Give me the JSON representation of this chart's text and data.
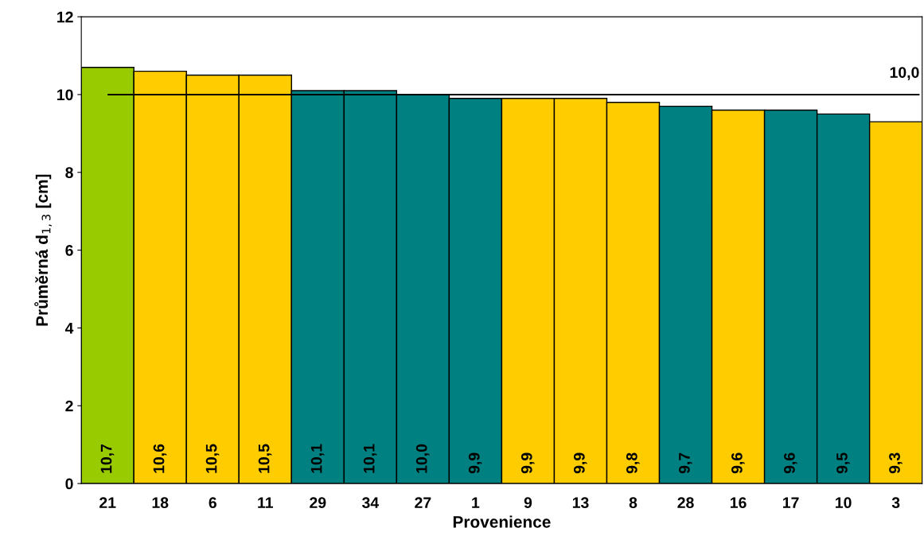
{
  "chart_data": {
    "type": "bar",
    "xlabel": "Provenience",
    "ylabel": "Průměrná d$_{1,3}$ [cm]",
    "categories": [
      "21",
      "18",
      "6",
      "11",
      "29",
      "34",
      "27",
      "1",
      "9",
      "13",
      "8",
      "28",
      "16",
      "17",
      "10",
      "3"
    ],
    "values": [
      10.7,
      10.6,
      10.5,
      10.5,
      10.1,
      10.1,
      10.0,
      9.9,
      9.9,
      9.9,
      9.8,
      9.7,
      9.6,
      9.6,
      9.5,
      9.3
    ],
    "value_labels": [
      "10,7",
      "10,6",
      "10,5",
      "10,5",
      "10,1",
      "10,1",
      "10,0",
      "9,9",
      "9,9",
      "9,9",
      "9,8",
      "9,7",
      "9,6",
      "9,6",
      "9,5",
      "9,3"
    ],
    "colors": [
      "#99cc00",
      "#ffcc00",
      "#ffcc00",
      "#ffcc00",
      "#008080",
      "#008080",
      "#008080",
      "#008080",
      "#ffcc00",
      "#ffcc00",
      "#ffcc00",
      "#008080",
      "#ffcc00",
      "#008080",
      "#008080",
      "#ffcc00"
    ],
    "ylim": [
      0,
      12
    ],
    "yticks": [
      0,
      2,
      4,
      6,
      8,
      10,
      12
    ],
    "ref_lines": [
      {
        "axis": "y",
        "value": 10.0,
        "label": "10,0",
        "color": "#000000"
      }
    ],
    "grid": false,
    "legend": false
  }
}
